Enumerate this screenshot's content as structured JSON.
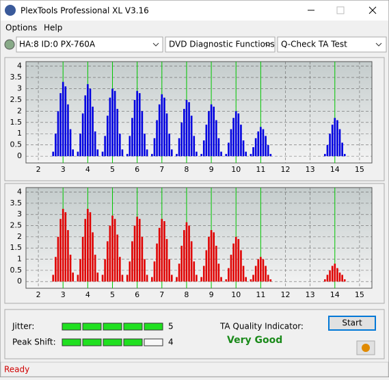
{
  "window": {
    "title": "PlexTools Professional XL V3.16",
    "status": "Ready"
  },
  "menu": [
    "Options",
    "Help"
  ],
  "toolbar": {
    "drive": "HA:8 ID:0  PX-760A",
    "function": "DVD Diagnostic Functions",
    "test": "Q-Check TA Test"
  },
  "chart_data": [
    {
      "type": "bar",
      "color": "#0000e0",
      "marker_color": "#00c800",
      "xlim": [
        1.5,
        15.5
      ],
      "ylim": [
        -0.3,
        4.2
      ],
      "xticks": [
        2,
        3,
        4,
        5,
        6,
        7,
        8,
        9,
        10,
        11,
        12,
        13,
        14,
        15
      ],
      "yticks": [
        0,
        0.5,
        1,
        1.5,
        2,
        2.5,
        3,
        3.5,
        4
      ],
      "grid": true,
      "markers": [
        3,
        4,
        5,
        6,
        7,
        8,
        9,
        10,
        11,
        14
      ],
      "x": [
        2.6,
        2.7,
        2.8,
        2.9,
        3,
        3.1,
        3.2,
        3.3,
        3.4,
        3.6,
        3.7,
        3.8,
        3.9,
        4,
        4.1,
        4.2,
        4.3,
        4.4,
        4.6,
        4.7,
        4.8,
        4.9,
        5,
        5.1,
        5.2,
        5.3,
        5.4,
        5.6,
        5.7,
        5.8,
        5.9,
        6,
        6.1,
        6.2,
        6.3,
        6.4,
        6.6,
        6.7,
        6.8,
        6.9,
        7,
        7.1,
        7.2,
        7.3,
        7.4,
        7.6,
        7.7,
        7.8,
        7.9,
        8,
        8.1,
        8.2,
        8.3,
        8.4,
        8.6,
        8.7,
        8.8,
        8.9,
        9,
        9.1,
        9.2,
        9.3,
        9.4,
        9.6,
        9.7,
        9.8,
        9.9,
        10,
        10.1,
        10.2,
        10.3,
        10.4,
        10.6,
        10.7,
        10.8,
        10.9,
        11,
        11.1,
        11.2,
        11.3,
        11.4,
        13.6,
        13.7,
        13.8,
        13.9,
        14,
        14.1,
        14.2,
        14.3,
        14.4
      ],
      "values": [
        0.2,
        1.0,
        2.0,
        2.8,
        3.3,
        3.1,
        2.3,
        1.2,
        0.3,
        0.2,
        1.0,
        1.9,
        2.7,
        3.2,
        3.0,
        2.2,
        1.1,
        0.3,
        0.2,
        0.9,
        1.8,
        2.6,
        3.0,
        2.9,
        2.1,
        1.0,
        0.3,
        0.1,
        0.9,
        1.7,
        2.5,
        2.9,
        2.8,
        2.0,
        1.0,
        0.3,
        0.1,
        0.8,
        1.6,
        2.3,
        2.75,
        2.6,
        1.9,
        1.0,
        0.3,
        0.1,
        0.8,
        1.5,
        2.1,
        2.5,
        2.4,
        1.8,
        0.9,
        0.2,
        0.1,
        0.7,
        1.4,
        2.0,
        2.3,
        2.2,
        1.6,
        0.8,
        0.2,
        0.1,
        0.6,
        1.2,
        1.7,
        2.0,
        1.9,
        1.4,
        0.7,
        0.2,
        0.1,
        0.4,
        0.8,
        1.1,
        1.3,
        1.2,
        0.9,
        0.5,
        0.1,
        0.1,
        0.5,
        1.0,
        1.4,
        1.7,
        1.6,
        1.2,
        0.6,
        0.1
      ]
    },
    {
      "type": "bar",
      "color": "#e00000",
      "marker_color": "#00c800",
      "xlim": [
        1.5,
        15.5
      ],
      "ylim": [
        -0.3,
        4.2
      ],
      "xticks": [
        2,
        3,
        4,
        5,
        6,
        7,
        8,
        9,
        10,
        11,
        12,
        13,
        14,
        15
      ],
      "yticks": [
        0,
        0.5,
        1,
        1.5,
        2,
        2.5,
        3,
        3.5,
        4
      ],
      "grid": true,
      "markers": [
        3,
        4,
        5,
        6,
        7,
        8,
        9,
        10,
        11,
        14
      ],
      "x": [
        2.6,
        2.7,
        2.8,
        2.9,
        3,
        3.1,
        3.2,
        3.3,
        3.4,
        3.6,
        3.7,
        3.8,
        3.9,
        4,
        4.1,
        4.2,
        4.3,
        4.4,
        4.6,
        4.7,
        4.8,
        4.9,
        5,
        5.1,
        5.2,
        5.3,
        5.4,
        5.6,
        5.7,
        5.8,
        5.9,
        6,
        6.1,
        6.2,
        6.3,
        6.4,
        6.6,
        6.7,
        6.8,
        6.9,
        7,
        7.1,
        7.2,
        7.3,
        7.4,
        7.6,
        7.7,
        7.8,
        7.9,
        8,
        8.1,
        8.2,
        8.3,
        8.4,
        8.6,
        8.7,
        8.8,
        8.9,
        9,
        9.1,
        9.2,
        9.3,
        9.4,
        9.6,
        9.7,
        9.8,
        9.9,
        10,
        10.1,
        10.2,
        10.3,
        10.4,
        10.6,
        10.7,
        10.8,
        10.9,
        11,
        11.1,
        11.2,
        11.3,
        11.4,
        13.6,
        13.7,
        13.8,
        13.9,
        14,
        14.1,
        14.2,
        14.3,
        14.4
      ],
      "values": [
        0.3,
        1.1,
        2.0,
        2.8,
        3.25,
        3.1,
        2.3,
        1.2,
        0.4,
        0.3,
        1.0,
        2.0,
        2.8,
        3.25,
        3.1,
        2.2,
        1.2,
        0.4,
        0.3,
        1.0,
        1.8,
        2.5,
        2.95,
        2.8,
        2.1,
        1.1,
        0.3,
        0.3,
        0.9,
        1.8,
        2.5,
        2.9,
        2.8,
        2.0,
        1.0,
        0.3,
        0.2,
        0.9,
        1.7,
        2.4,
        2.8,
        2.7,
        1.9,
        1.0,
        0.3,
        0.2,
        0.8,
        1.6,
        2.3,
        2.65,
        2.5,
        1.8,
        0.9,
        0.3,
        0.2,
        0.7,
        1.4,
        2.0,
        2.3,
        2.2,
        1.6,
        0.8,
        0.2,
        0.1,
        0.6,
        1.2,
        1.7,
        2.0,
        1.9,
        1.4,
        0.7,
        0.2,
        0.1,
        0.3,
        0.7,
        1.0,
        1.1,
        1.0,
        0.7,
        0.3,
        0.1,
        0.1,
        0.3,
        0.5,
        0.7,
        0.8,
        0.6,
        0.4,
        0.3,
        0.1
      ]
    }
  ],
  "results": {
    "jitter_label": "Jitter:",
    "jitter": 5,
    "peak_shift_label": "Peak Shift:",
    "peak_shift": 4,
    "quality_label": "TA Quality Indicator:",
    "quality": "Very Good",
    "start": "Start"
  }
}
